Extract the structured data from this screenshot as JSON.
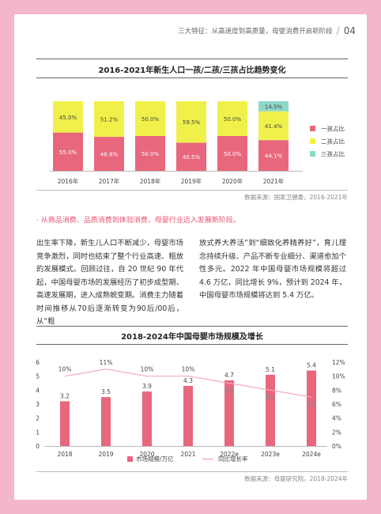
{
  "header": {
    "title": "三大特征：从高速度到高质量，母婴消费开启新阶段",
    "page": "04"
  },
  "chart1": {
    "title": "2016-2021年新生人口一孩/二孩/三孩占比趋势变化",
    "source": "数据来源：国家卫健委，2016-2021年"
  },
  "chart2": {
    "title": "2018-2024年中国母婴市场规模及增长",
    "source": "数据来源：母婴研究院，2018-2024年"
  },
  "bullet": "· 从商品消费、品质消费到体验消费，母婴行业迈入发展新阶段。",
  "para_left": "出生率下降，新生儿人口不断减少，母婴市场竞争激烈，同时也结束了整个行业高速、粗放的发展模式。回顾过往，自 20 世纪 90 年代起，中国母婴市场的发展经历了初步成型期、高速发展期，进入成熟蜕变期。消费主力随着时间推移从70后逐渐转变为90后/00后，从“粗",
  "para_right": "放式养大养活”到“细致化养精养好”，育儿理念持续升级、产品不断专业细分、渠道愈加个性多元。2022 年中国母婴市场规模将超过 4.6 万亿，同比增长 9%，预计到 2024 年，中国母婴市场规模将达到 5.4 万亿。",
  "chart_data": [
    {
      "type": "bar",
      "stacked": true,
      "title": "2016-2021年新生人口一孩/二孩/三孩占比趋势变化",
      "categories": [
        "2016年",
        "2017年",
        "2018年",
        "2019年",
        "2020年",
        "2021年"
      ],
      "series": [
        {
          "name": "一孩占比",
          "color": "#e8677d",
          "values": [
            55.0,
            48.8,
            50.0,
            40.5,
            50.0,
            44.1
          ],
          "labels": [
            "55.0%",
            "48.8%",
            "50.0%",
            "40.5%",
            "50.0%",
            "44.1%"
          ]
        },
        {
          "name": "二孩占比",
          "color": "#f0f04a",
          "values": [
            45.0,
            51.2,
            50.0,
            59.5,
            50.0,
            41.4
          ],
          "labels": [
            "45.0%",
            "51.2%",
            "50.0%",
            "59.5%",
            "50.0%",
            "41.4%"
          ]
        },
        {
          "name": "三孩占比",
          "color": "#8fd8c8",
          "values": [
            0,
            0,
            0,
            0,
            0,
            14.5
          ],
          "labels": [
            "",
            "",
            "",
            "",
            "",
            "14.5%"
          ]
        }
      ],
      "legend": "right"
    },
    {
      "type": "bar",
      "title": "2018-2024年中国母婴市场规模及增长",
      "categories": [
        "2018",
        "2019",
        "2020",
        "2021",
        "2022e",
        "2023e",
        "2024e"
      ],
      "ylim": [
        0,
        6
      ],
      "yticks": [
        "0",
        "1",
        "2",
        "3",
        "4",
        "5",
        "6"
      ],
      "y2lim": [
        0,
        12
      ],
      "y2ticks": [
        "0%",
        "2%",
        "4%",
        "6%",
        "8%",
        "10%",
        "12%"
      ],
      "series": [
        {
          "name": "市场规模/万亿",
          "type": "bar",
          "color": "#e8677d",
          "values": [
            3.2,
            3.5,
            3.9,
            4.3,
            4.7,
            5.1,
            5.4
          ],
          "labels": [
            "3.2",
            "3.5",
            "3.9",
            "4.3",
            "4.7",
            "5.1",
            "5.4"
          ]
        },
        {
          "name": "同比增长率",
          "type": "line",
          "axis": "right",
          "color": "#f2a9bd",
          "values": [
            10,
            11,
            10,
            10,
            9,
            8,
            7
          ],
          "labels": [
            "10%",
            "11%",
            "10%",
            "10%",
            "9%",
            "8%",
            "7%"
          ]
        }
      ],
      "legend": "bottom"
    }
  ]
}
